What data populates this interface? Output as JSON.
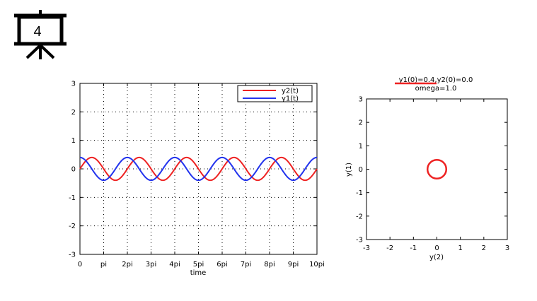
{
  "slide": {
    "number": "4",
    "icon": "projector-screen-icon"
  },
  "chart_data": [
    {
      "type": "line",
      "title": "",
      "xlabel": "time",
      "ylabel": "",
      "xlim": [
        0,
        31.4159
      ],
      "ylim": [
        -3,
        3
      ],
      "xticks": [
        {
          "value": 0,
          "label": "0"
        },
        {
          "value": 3.14159,
          "label": "pi"
        },
        {
          "value": 6.28319,
          "label": "2pi"
        },
        {
          "value": 9.42478,
          "label": "3pi"
        },
        {
          "value": 12.5664,
          "label": "4pi"
        },
        {
          "value": 15.708,
          "label": "5pi"
        },
        {
          "value": 18.8496,
          "label": "6pi"
        },
        {
          "value": 21.9911,
          "label": "7pi"
        },
        {
          "value": 25.1327,
          "label": "8pi"
        },
        {
          "value": 28.2743,
          "label": "9pi"
        },
        {
          "value": 31.4159,
          "label": "10pi"
        }
      ],
      "yticks": [
        {
          "value": 3,
          "label": "3"
        },
        {
          "value": 2,
          "label": "2"
        },
        {
          "value": 1,
          "label": "1"
        },
        {
          "value": 0,
          "label": "0"
        },
        {
          "value": -1,
          "label": "-1"
        },
        {
          "value": -2,
          "label": "-2"
        },
        {
          "value": -3,
          "label": "-3"
        }
      ],
      "grid": true,
      "legend_position": "top-right",
      "series": [
        {
          "name": "y2(t)",
          "color": "#ee2222",
          "function": "sin",
          "amplitude": 0.4,
          "omega": 1.0
        },
        {
          "name": "y1(t)",
          "color": "#2233ee",
          "function": "cos",
          "amplitude": 0.4,
          "omega": 1.0
        }
      ]
    },
    {
      "type": "line",
      "title_line1": "y1(0)=0.4,y2(0)=0.0",
      "title_line2": "omega=1.0",
      "xlabel": "y(2)",
      "ylabel": "y(1)",
      "xlim": [
        -3,
        3
      ],
      "ylim": [
        -3,
        3
      ],
      "xticks": [
        {
          "value": -3,
          "label": "-3"
        },
        {
          "value": -2,
          "label": "-2"
        },
        {
          "value": -1,
          "label": "-1"
        },
        {
          "value": 0,
          "label": "0"
        },
        {
          "value": 1,
          "label": "1"
        },
        {
          "value": 2,
          "label": "2"
        },
        {
          "value": 3,
          "label": "3"
        }
      ],
      "yticks": [
        {
          "value": 3,
          "label": "3"
        },
        {
          "value": 2,
          "label": "2"
        },
        {
          "value": 1,
          "label": "1"
        },
        {
          "value": 0,
          "label": "0"
        },
        {
          "value": -1,
          "label": "-1"
        },
        {
          "value": -2,
          "label": "-2"
        },
        {
          "value": -3,
          "label": "-3"
        }
      ],
      "grid": false,
      "series": [
        {
          "name": "",
          "color": "#ee2222",
          "shape": "circle",
          "center": [
            0,
            0
          ],
          "radius": 0.4
        }
      ]
    }
  ]
}
